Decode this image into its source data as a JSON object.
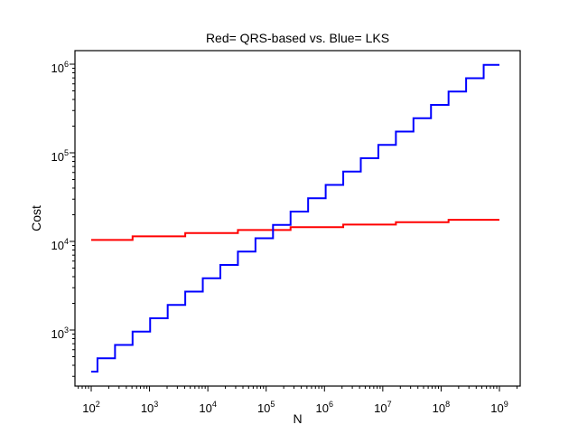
{
  "chart_data": {
    "type": "line",
    "line_style": "step-staircase",
    "title": "Red= QRS-based vs. Blue= LKS",
    "xlabel": "N",
    "ylabel": "Cost",
    "x_scale": "log10",
    "y_scale": "log10",
    "xlim": [
      52,
      2270000000
    ],
    "ylim": [
      233,
      1420000
    ],
    "grid": false,
    "legend_position": "none (series identified in title)",
    "tick_base": "10",
    "x_major_tick_exponents": [
      2,
      3,
      4,
      5,
      6,
      7,
      8,
      9
    ],
    "y_major_tick_exponents": [
      3,
      4,
      5,
      6
    ],
    "minor_tick_multipliers": [
      2,
      3,
      4,
      5,
      6,
      7,
      8,
      9
    ],
    "background_color": "#ffffff",
    "frame_color": "#000000",
    "text_color": "#000000",
    "series": [
      {
        "name": "QRS-based",
        "color": "#ff0000",
        "line_width": 2,
        "steps": [
          [
            100,
            10400
          ],
          [
            512,
            11420
          ],
          [
            4096,
            12430
          ],
          [
            32768,
            13440
          ],
          [
            262144,
            14460
          ],
          [
            2097152,
            15470
          ],
          [
            16777216,
            16490
          ],
          [
            134217728,
            17500
          ],
          [
            1000000000,
            17500
          ]
        ]
      },
      {
        "name": "LKS",
        "color": "#0000ff",
        "line_width": 2,
        "steps": [
          [
            100,
            339
          ],
          [
            128,
            480
          ],
          [
            256,
            679
          ],
          [
            512,
            960
          ],
          [
            1024,
            1358
          ],
          [
            2048,
            1920
          ],
          [
            4096,
            2715
          ],
          [
            8192,
            3840
          ],
          [
            16384,
            5431
          ],
          [
            32768,
            7680
          ],
          [
            65536,
            10861
          ],
          [
            131072,
            15360
          ],
          [
            262144,
            21722
          ],
          [
            524288,
            30720
          ],
          [
            1048576,
            43445
          ],
          [
            2097152,
            61440
          ],
          [
            4194304,
            86889
          ],
          [
            8388608,
            122880
          ],
          [
            16777216,
            173779
          ],
          [
            33554432,
            245760
          ],
          [
            67108864,
            347558
          ],
          [
            134217728,
            491520
          ],
          [
            268435456,
            695115
          ],
          [
            536870912,
            983040
          ],
          [
            1000000000,
            983040
          ]
        ]
      }
    ]
  }
}
